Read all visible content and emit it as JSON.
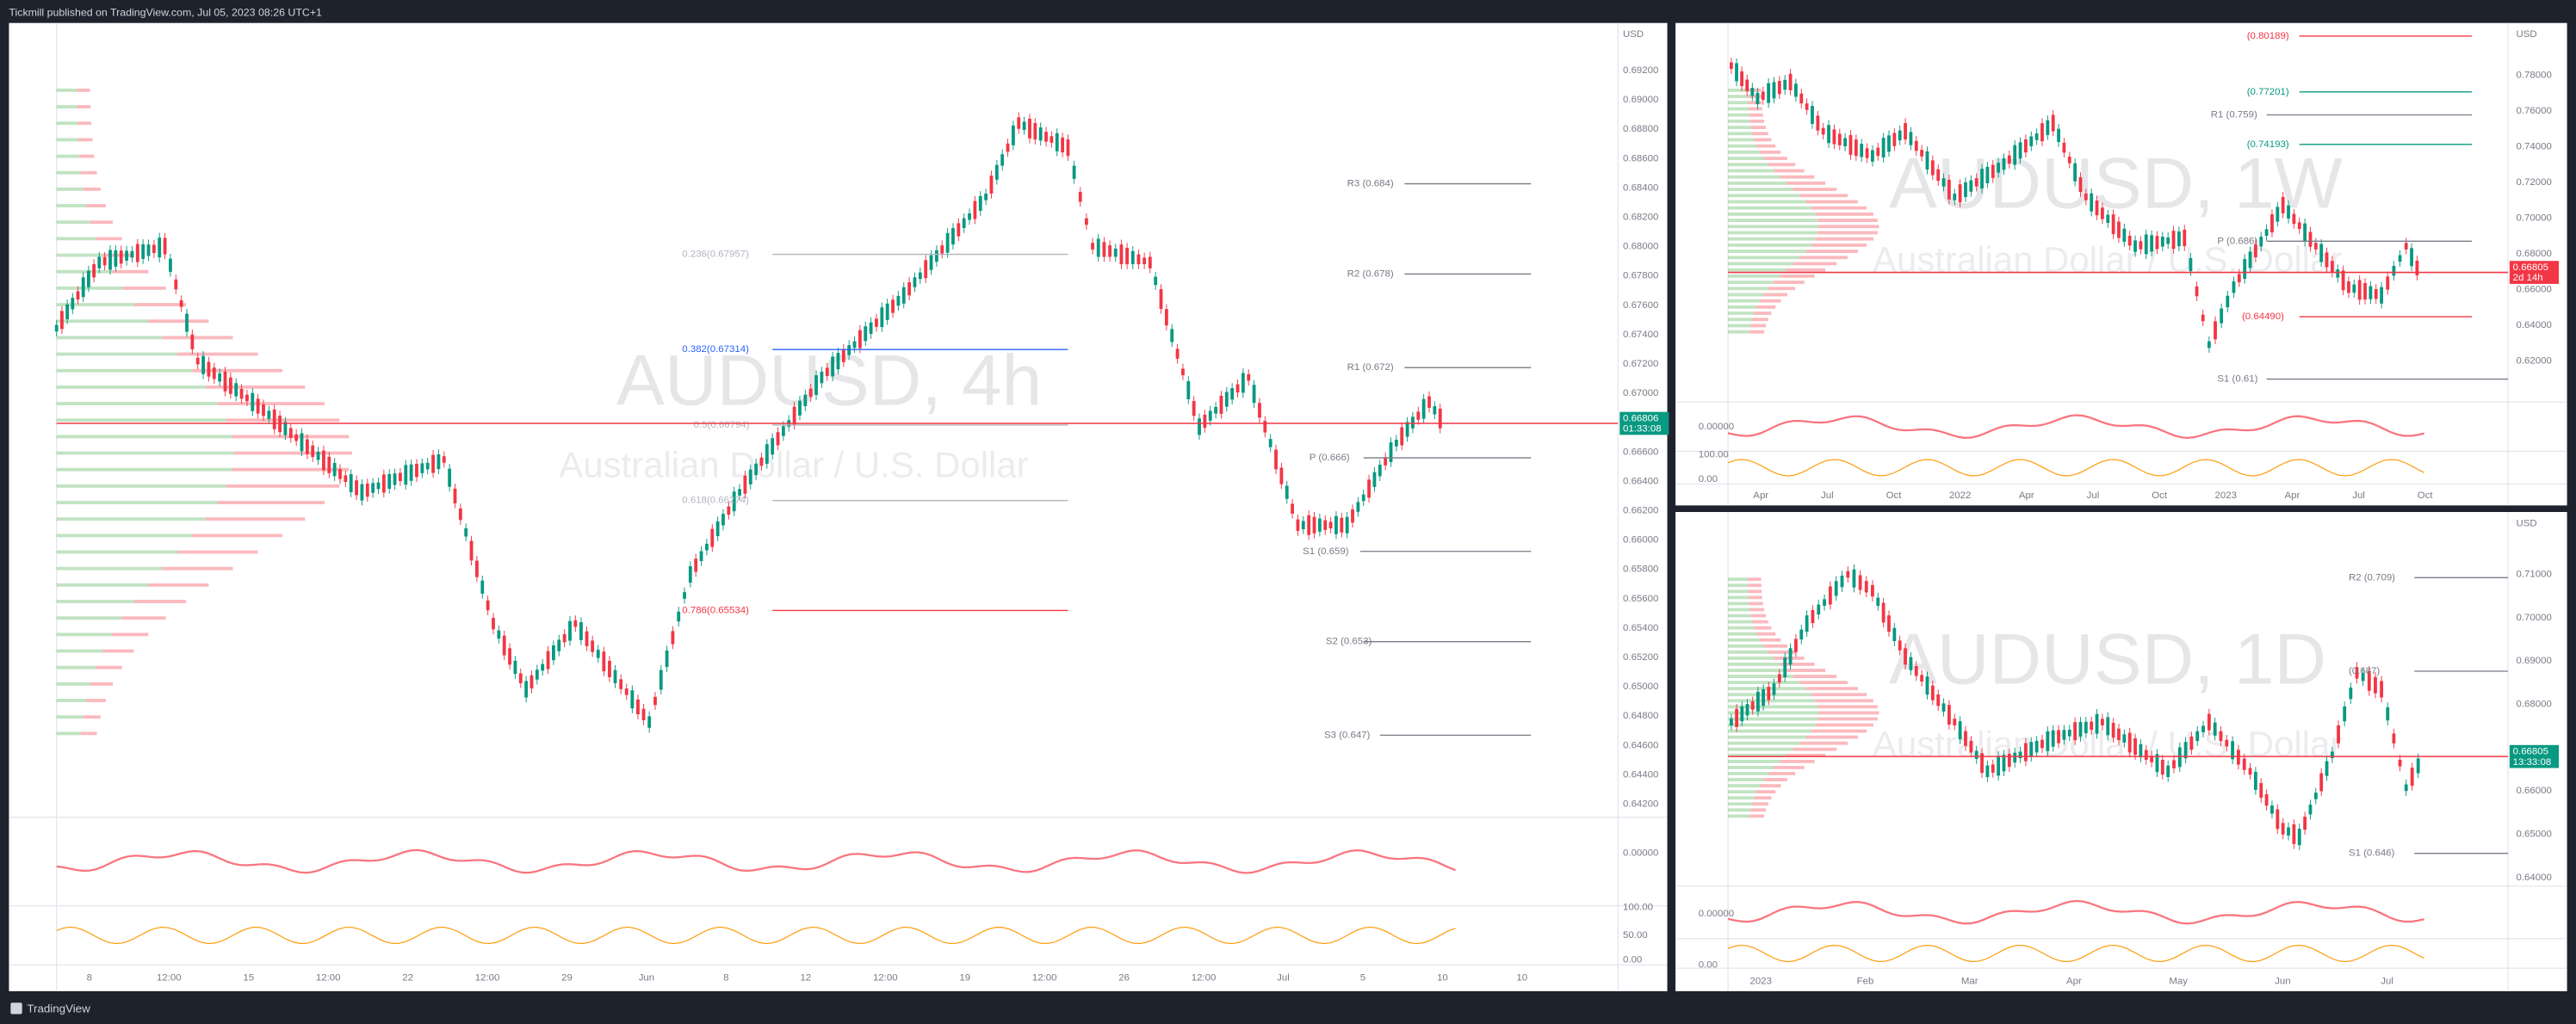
{
  "header": {
    "publisher": "Tickmill published on TradingView.com, Jul 05, 2023 08:26 UTC+1"
  },
  "footer": {
    "brand": "TradingView"
  },
  "panels": [
    {
      "title": "AUDUSD, 4h",
      "subtitle": "Australian Dollar / U.S. Dollar",
      "currency": "USD",
      "levels": [
        {
          "label": "R3 (0.684)",
          "color": "#787b86"
        },
        {
          "label": "R2 (0.678)",
          "color": "#787b86"
        },
        {
          "label": "R1 (0.672)",
          "color": "#787b86"
        },
        {
          "label": "P (0.666)",
          "color": "#787b86"
        },
        {
          "label": "S1 (0.659)",
          "color": "#787b86"
        },
        {
          "label": "S2 (0.653)",
          "color": "#787b86"
        },
        {
          "label": "S3 (0.647)",
          "color": "#787b86"
        },
        {
          "label": "0.236(0.67957)",
          "color": "#b2b5be"
        },
        {
          "label": "0.382(0.67314)",
          "color": "#2962ff"
        },
        {
          "label": "0.5(0.66794)",
          "color": "#b2b5be"
        },
        {
          "label": "0.618(0.66274)",
          "color": "#b2b5be"
        },
        {
          "label": "0.786(0.65534)",
          "color": "#f23645"
        }
      ],
      "price_scale": [
        "0.69200",
        "0.69000",
        "0.68800",
        "0.68600",
        "0.68400",
        "0.68200",
        "0.68000",
        "0.67800",
        "0.67600",
        "0.67400",
        "0.67200",
        "0.67000",
        "0.66800",
        "0.66600",
        "0.66400",
        "0.66200",
        "0.66000",
        "0.65800",
        "0.65600",
        "0.65400",
        "0.65200",
        "0.65000",
        "0.64800",
        "0.64600",
        "0.64400",
        "0.64200"
      ],
      "last_price": "0.66806",
      "countdown": "01:33:08",
      "osc_labels": [
        "0.00000",
        "100.00",
        "50.00",
        "0.00"
      ],
      "time_axis": [
        "8",
        "12:00",
        "15",
        "12:00",
        "22",
        "12:00",
        "29",
        "Jun",
        "8",
        "12",
        "12:00",
        "19",
        "12:00",
        "26",
        "12:00",
        "Jul",
        "5",
        "10",
        "10"
      ]
    },
    {
      "title": "AUDUSD, 1W",
      "subtitle": "Australian Dollar / U.S. Dollar",
      "currency": "USD",
      "levels": [
        {
          "label": "(0.80189)",
          "color": "#f23645"
        },
        {
          "label": "(0.77201)",
          "color": "#089981"
        },
        {
          "label": "R1 (0.759)",
          "color": "#787b86"
        },
        {
          "label": "(0.74193)",
          "color": "#089981"
        },
        {
          "label": "P (0.686)",
          "color": "#787b86"
        },
        {
          "label": "(0.64490)",
          "color": "#f23645"
        },
        {
          "label": "S1 (0.61)",
          "color": "#787b86"
        }
      ],
      "price_scale": [
        "0.78000",
        "0.76000",
        "0.74000",
        "0.72000",
        "0.70000",
        "0.68000",
        "0.66000",
        "0.64000",
        "0.62000"
      ],
      "last_price": "0.66805",
      "countdown": "2d 14h",
      "osc_labels": [
        "0.00000",
        "100.00",
        "0.00"
      ],
      "time_axis": [
        "Apr",
        "Jul",
        "Oct",
        "2022",
        "Apr",
        "Jul",
        "Oct",
        "2023",
        "Apr",
        "Jul",
        "Oct"
      ]
    },
    {
      "title": "AUDUSD, 1D",
      "subtitle": "Australian Dollar / U.S. Dollar",
      "currency": "USD",
      "levels": [
        {
          "label": "R2 (0.709)",
          "color": "#787b86"
        },
        {
          "label": "(0.687)",
          "color": "#787b86"
        },
        {
          "label": "S1 (0.646)",
          "color": "#787b86"
        }
      ],
      "price_scale": [
        "0.71000",
        "0.70000",
        "0.69000",
        "0.68000",
        "0.67000",
        "0.66000",
        "0.65000",
        "0.64000"
      ],
      "last_price": "0.66805",
      "countdown": "13:33:08",
      "osc_labels": [
        "0.00000",
        "0.00"
      ],
      "time_axis": [
        "2023",
        "Feb",
        "Mar",
        "Apr",
        "May",
        "Jun",
        "Jul"
      ]
    }
  ]
}
